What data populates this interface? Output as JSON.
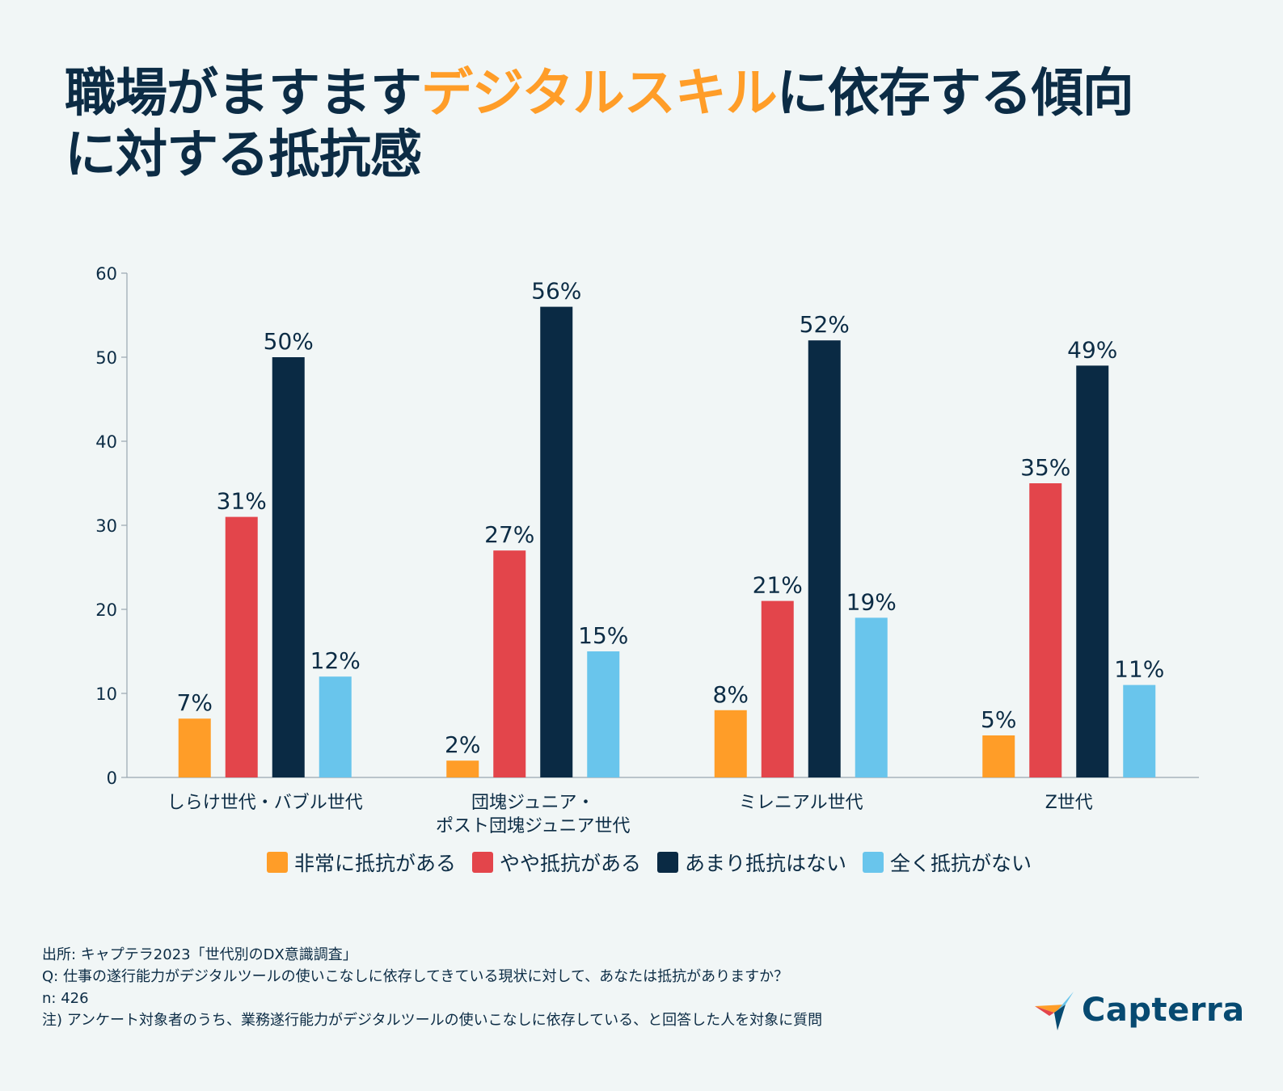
{
  "title": {
    "part1": "職場がますます",
    "highlight": "デジタルスキル",
    "part2": "に依存する傾向",
    "line2": "に対する抵抗感"
  },
  "colors": {
    "title_highlight": "#ff9d28",
    "text": "#0c2c45",
    "background": "#f1f6f6"
  },
  "chart_data": {
    "type": "bar",
    "title": "職場がますますデジタルスキルに依存する傾向に対する抵抗感",
    "categories": [
      [
        "しらけ世代・バブル世代"
      ],
      [
        "団塊ジュニア・",
        "ポスト団塊ジュニア世代"
      ],
      [
        "ミレニアル世代"
      ],
      [
        "Z世代"
      ]
    ],
    "series": [
      {
        "name": "非常に抵抗がある",
        "color": "#ff9d28",
        "values": [
          7,
          2,
          8,
          5
        ],
        "labels": [
          "7%",
          "2%",
          "8%",
          "5%"
        ]
      },
      {
        "name": "やや抵抗がある",
        "color": "#e3454b",
        "values": [
          31,
          27,
          21,
          35
        ],
        "labels": [
          "31%",
          "27%",
          "21%",
          "35%"
        ]
      },
      {
        "name": "あまり抵抗はない",
        "color": "#0a2a44",
        "values": [
          50,
          56,
          52,
          49
        ],
        "labels": [
          "50%",
          "56%",
          "52%",
          "49%"
        ]
      },
      {
        "name": "全く抵抗がない",
        "color": "#69c5ec",
        "values": [
          12,
          15,
          19,
          11
        ],
        "labels": [
          "12%",
          "15%",
          "19%",
          "11%"
        ]
      }
    ],
    "ylim": [
      0,
      60
    ],
    "yticks": [
      0,
      10,
      20,
      30,
      40,
      50,
      60
    ],
    "ytick_labels": [
      "0",
      "10",
      "20",
      "30",
      "40",
      "50",
      "60"
    ],
    "xlabel": "",
    "ylabel": "",
    "legend_position": "bottom",
    "grid": false
  },
  "footer": {
    "source": "出所: キャプテラ2023「世代別のDX意識調査」",
    "question": "Q: 仕事の遂行能力がデジタルツールの使いこなしに依存してきている現状に対して、あなたは抵抗がありますか？",
    "n": "n: 426",
    "note": "注)  アンケート対象者のうち、業務遂行能力がデジタルツールの使いこなしに依存している、と回答した人を対象に質問"
  },
  "logo": {
    "text": "Capterra",
    "icon": "capterra-arrow-icon"
  }
}
